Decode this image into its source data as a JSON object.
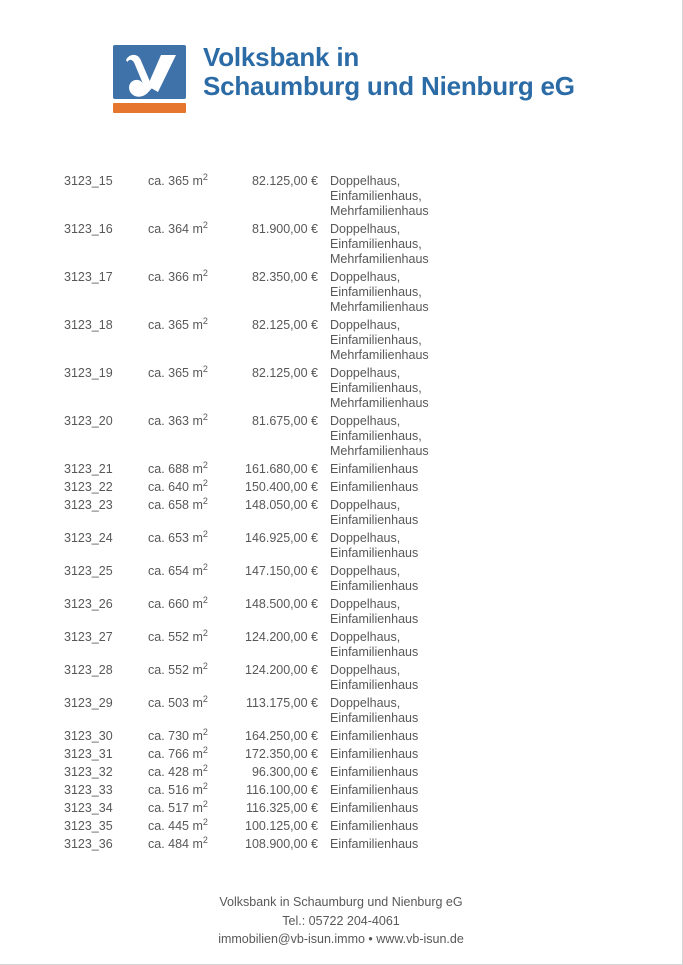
{
  "header": {
    "bank_name_line1": "Volksbank in",
    "bank_name_line2": "Schaumburg und Nienburg eG",
    "logo": {
      "icon": "volksbank-v-logo",
      "square_color": "#3f72a8",
      "bar_color": "#e6752d",
      "mark_color": "#ffffff"
    }
  },
  "table": {
    "rows": [
      {
        "id": "3123_15",
        "size": "ca. 365 m",
        "size_sup": "2",
        "price": "82.125,00 €",
        "types": [
          "Doppelhaus,",
          "Einfamilienhaus,",
          "Mehrfamilienhaus"
        ]
      },
      {
        "id": "3123_16",
        "size": "ca. 364 m",
        "size_sup": "2",
        "price": "81.900,00 €",
        "types": [
          "Doppelhaus,",
          "Einfamilienhaus,",
          "Mehrfamilienhaus"
        ]
      },
      {
        "id": "3123_17",
        "size": "ca. 366 m",
        "size_sup": "2",
        "price": "82.350,00 €",
        "types": [
          "Doppelhaus,",
          "Einfamilienhaus,",
          "Mehrfamilienhaus"
        ]
      },
      {
        "id": "3123_18",
        "size": "ca. 365 m",
        "size_sup": "2",
        "price": "82.125,00 €",
        "types": [
          "Doppelhaus,",
          "Einfamilienhaus,",
          "Mehrfamilienhaus"
        ]
      },
      {
        "id": "3123_19",
        "size": "ca. 365 m",
        "size_sup": "2",
        "price": "82.125,00 €",
        "types": [
          "Doppelhaus,",
          "Einfamilienhaus,",
          "Mehrfamilienhaus"
        ]
      },
      {
        "id": "3123_20",
        "size": "ca. 363 m",
        "size_sup": "2",
        "price": "81.675,00 €",
        "types": [
          "Doppelhaus,",
          "Einfamilienhaus,",
          "Mehrfamilienhaus"
        ]
      },
      {
        "id": "3123_21",
        "size": "ca. 688 m",
        "size_sup": "2",
        "price": "161.680,00 €",
        "types": [
          "Einfamilienhaus"
        ]
      },
      {
        "id": "3123_22",
        "size": "ca. 640 m",
        "size_sup": "2",
        "price": "150.400,00 €",
        "types": [
          "Einfamilienhaus"
        ]
      },
      {
        "id": "3123_23",
        "size": "ca. 658 m",
        "size_sup": "2",
        "price": "148.050,00 €",
        "types": [
          "Doppelhaus,",
          "Einfamilienhaus"
        ]
      },
      {
        "id": "3123_24",
        "size": "ca. 653 m",
        "size_sup": "2",
        "price": "146.925,00 €",
        "types": [
          "Doppelhaus,",
          "Einfamilienhaus"
        ]
      },
      {
        "id": "3123_25",
        "size": "ca. 654 m",
        "size_sup": "2",
        "price": "147.150,00 €",
        "types": [
          "Doppelhaus,",
          "Einfamilienhaus"
        ]
      },
      {
        "id": "3123_26",
        "size": "ca. 660 m",
        "size_sup": "2",
        "price": "148.500,00 €",
        "types": [
          "Doppelhaus,",
          "Einfamilienhaus"
        ]
      },
      {
        "id": "3123_27",
        "size": "ca. 552 m",
        "size_sup": "2",
        "price": "124.200,00 €",
        "types": [
          "Doppelhaus,",
          "Einfamilienhaus"
        ]
      },
      {
        "id": "3123_28",
        "size": "ca. 552 m",
        "size_sup": "2",
        "price": "124.200,00 €",
        "types": [
          "Doppelhaus,",
          "Einfamilienhaus"
        ]
      },
      {
        "id": "3123_29",
        "size": "ca. 503 m",
        "size_sup": "2",
        "price": "113.175,00 €",
        "types": [
          "Doppelhaus,",
          "Einfamilienhaus"
        ]
      },
      {
        "id": "3123_30",
        "size": "ca. 730 m",
        "size_sup": "2",
        "price": "164.250,00 €",
        "types": [
          "Einfamilienhaus"
        ]
      },
      {
        "id": "3123_31",
        "size": "ca. 766 m",
        "size_sup": "2",
        "price": "172.350,00 €",
        "types": [
          "Einfamilienhaus"
        ]
      },
      {
        "id": "3123_32",
        "size": "ca. 428 m",
        "size_sup": "2",
        "price": "96.300,00 €",
        "types": [
          "Einfamilienhaus"
        ]
      },
      {
        "id": "3123_33",
        "size": "ca. 516 m",
        "size_sup": "2",
        "price": "116.100,00 €",
        "types": [
          "Einfamilienhaus"
        ]
      },
      {
        "id": "3123_34",
        "size": "ca. 517 m",
        "size_sup": "2",
        "price": "116.325,00 €",
        "types": [
          "Einfamilienhaus"
        ]
      },
      {
        "id": "3123_35",
        "size": "ca. 445 m",
        "size_sup": "2",
        "price": "100.125,00 €",
        "types": [
          "Einfamilienhaus"
        ]
      },
      {
        "id": "3123_36",
        "size": "ca. 484 m",
        "size_sup": "2",
        "price": "108.900,00 €",
        "types": [
          "Einfamilienhaus"
        ]
      }
    ]
  },
  "footer": {
    "line1": "Volksbank in Schaumburg und Nienburg eG",
    "line2": "Tel.: 05722 204-4061",
    "line3": "immobilien@vb-isun.immo • www.vb-isun.de"
  },
  "colors": {
    "brand_blue": "#2b6ba6",
    "logo_blue": "#3f72a8",
    "logo_orange": "#e6752d",
    "text_gray": "#58585a"
  }
}
